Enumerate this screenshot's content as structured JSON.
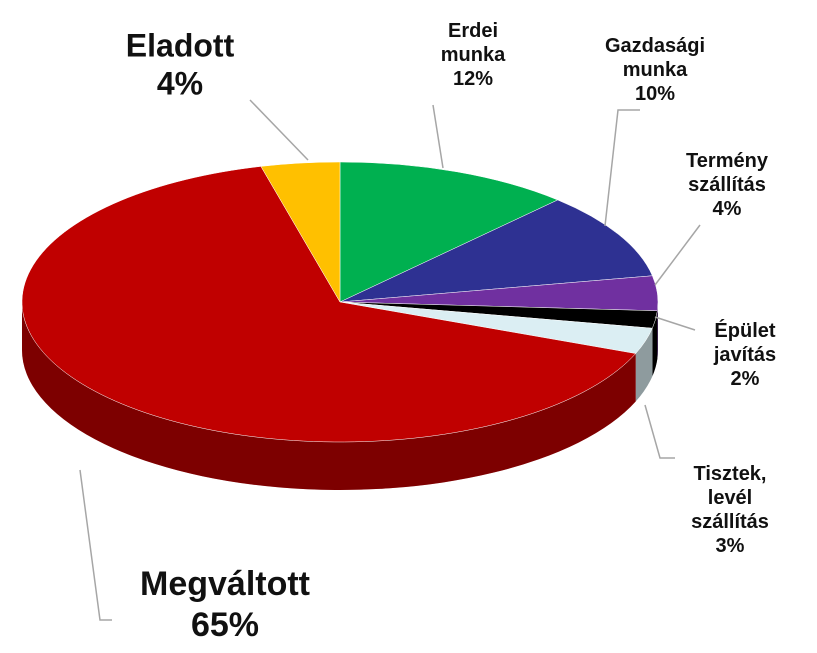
{
  "chart_data": {
    "type": "pie3d",
    "categories": [
      "Erdei munka",
      "Gazdasági munka",
      "Termény szállítás",
      "Épület javítás",
      "Tisztek, levél szállítás",
      "Megváltott",
      "Eladott"
    ],
    "values": [
      12,
      10,
      4,
      2,
      3,
      65,
      4
    ],
    "value_labels": [
      "12%",
      "10%",
      "4%",
      "2%",
      "3%",
      "65%",
      "4%"
    ],
    "colors": [
      "#00b050",
      "#2e3192",
      "#7030a0",
      "#000000",
      "#dbeef3",
      "#c00000",
      "#ffc000"
    ]
  }
}
